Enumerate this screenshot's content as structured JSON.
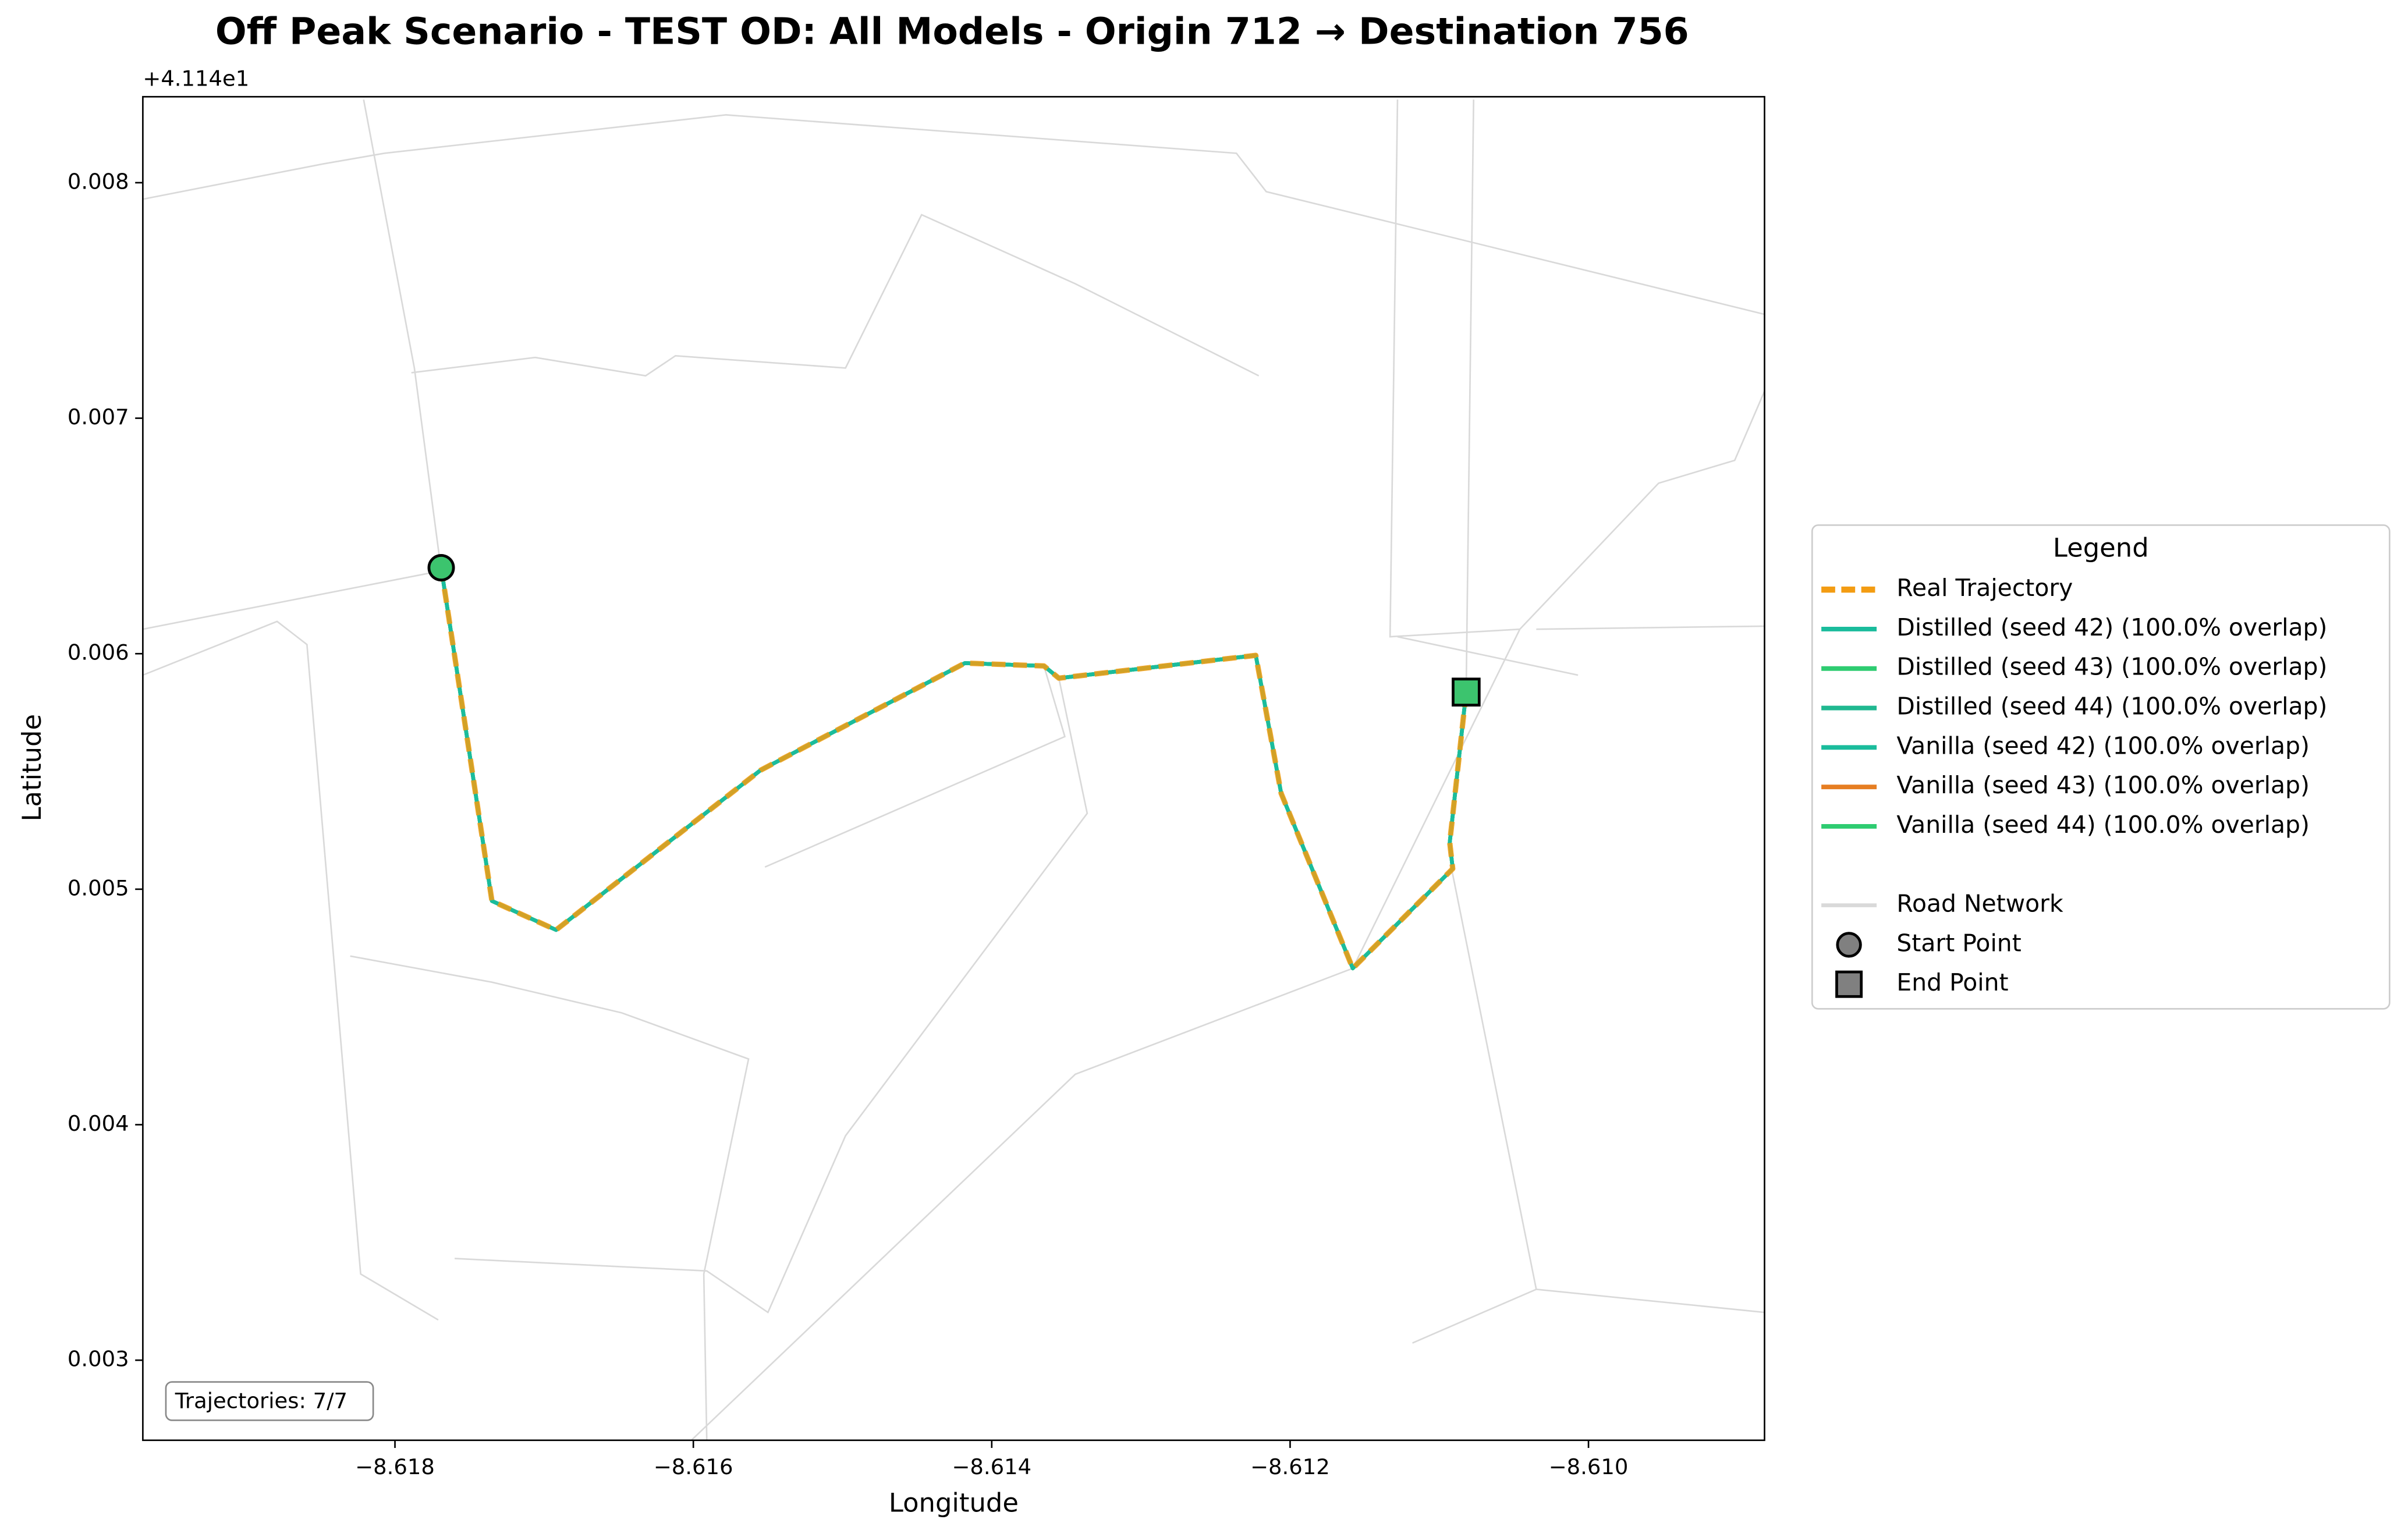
{
  "chart_data": {
    "type": "line",
    "title": "Off Peak Scenario - TEST OD: All Models - Origin 712 → Destination 756",
    "xlabel": "Longitude",
    "ylabel": "Latitude",
    "y_offset_label": "+4.114e1",
    "annotation": "Trajectories: 7/7",
    "legend_title": "Legend",
    "legend_loc": "right",
    "xlim": [
      -8.61969,
      -8.60882
    ],
    "ylim": [
      0.00266,
      0.008365
    ],
    "xticks": [
      {
        "value": -8.618,
        "label": "−8.618"
      },
      {
        "value": -8.616,
        "label": "−8.616"
      },
      {
        "value": -8.614,
        "label": "−8.614"
      },
      {
        "value": -8.612,
        "label": "−8.612"
      },
      {
        "value": -8.61,
        "label": "−8.610"
      }
    ],
    "yticks": [
      0.003,
      0.004,
      0.005,
      0.006,
      0.007,
      0.008
    ],
    "x": [
      -8.61769,
      -8.61735,
      -8.61692,
      -8.61555,
      -8.61418,
      -8.61365,
      -8.61355,
      -8.61223,
      -8.61206,
      -8.61158,
      -8.61091,
      -8.61093,
      -8.61082
    ],
    "series": [
      {
        "name": "Real Trajectory",
        "color": "#f39c12",
        "dashed": true,
        "values": [
          0.006365,
          0.00495,
          0.004827,
          0.005505,
          0.00596,
          0.005948,
          0.005896,
          0.005993,
          0.005407,
          0.004664,
          0.005087,
          0.005198,
          0.005837
        ]
      },
      {
        "name": "Distilled (seed 42) (100.0% overlap)",
        "color": "#1abc9c",
        "values": [
          0.006365,
          0.00495,
          0.004827,
          0.005505,
          0.00596,
          0.005948,
          0.005896,
          0.005993,
          0.005407,
          0.004664,
          0.005087,
          0.005198,
          0.005837
        ]
      },
      {
        "name": "Distilled (seed 43) (100.0% overlap)",
        "color": "#2ecc71",
        "values": [
          0.006365,
          0.00495,
          0.004827,
          0.005505,
          0.00596,
          0.005948,
          0.005896,
          0.005993,
          0.005407,
          0.004664,
          0.005087,
          0.005198,
          0.005837
        ]
      },
      {
        "name": "Distilled (seed 44) (100.0% overlap)",
        "color": "#20b890",
        "values": [
          0.006365,
          0.00495,
          0.004827,
          0.005505,
          0.00596,
          0.005948,
          0.005896,
          0.005993,
          0.005407,
          0.004664,
          0.005087,
          0.005198,
          0.005837
        ]
      },
      {
        "name": "Vanilla (seed 42) (100.0% overlap)",
        "color": "#1abc9c",
        "values": [
          0.006365,
          0.00495,
          0.004827,
          0.005505,
          0.00596,
          0.005948,
          0.005896,
          0.005993,
          0.005407,
          0.004664,
          0.005087,
          0.005198,
          0.005837
        ]
      },
      {
        "name": "Vanilla (seed 43) (100.0% overlap)",
        "color": "#e67e22",
        "values": [
          0.006365,
          0.00495,
          0.004827,
          0.005505,
          0.00596,
          0.005948,
          0.005896,
          0.005993,
          0.005407,
          0.004664,
          0.005087,
          0.005198,
          0.005837
        ]
      },
      {
        "name": "Vanilla (seed 44) (100.0% overlap)",
        "color": "#2ecc71",
        "values": [
          0.006365,
          0.00495,
          0.004827,
          0.005505,
          0.00596,
          0.005948,
          0.005896,
          0.005993,
          0.005407,
          0.004664,
          0.005087,
          0.005198,
          0.005837
        ]
      }
    ],
    "road_network": {
      "name": "Road Network",
      "color": "#d9d9d9",
      "lines": [
        {
          "x": [
            -8.61969,
            -8.61848,
            -8.61807,
            -8.61578,
            -8.61236,
            -8.61216,
            -8.60882
          ],
          "y": [
            0.00793,
            0.00808,
            0.008125,
            0.008288,
            0.008125,
            0.007962,
            0.007441
          ]
        },
        {
          "x": [
            -8.61969,
            -8.61769
          ],
          "y": [
            0.006104,
            0.006352
          ]
        },
        {
          "x": [
            -8.61821,
            -8.61787,
            -8.61769
          ],
          "y": [
            0.008353,
            0.007213,
            0.006352
          ]
        },
        {
          "x": [
            -8.61789,
            -8.61706,
            -8.61632,
            -8.61612,
            -8.61498,
            -8.61447,
            -8.61344,
            -8.61221
          ],
          "y": [
            0.007193,
            0.007258,
            0.00718,
            0.007265,
            0.007213,
            0.007864,
            0.007571,
            0.00718
          ]
        },
        {
          "x": [
            -8.61601,
            -8.61344,
            -8.61158,
            -8.61046,
            -8.60953,
            -8.60902,
            -8.60882
          ],
          "y": [
            0.002662,
            0.004214,
            0.004664,
            0.006104,
            0.006724,
            0.006821,
            0.007115
          ]
        },
        {
          "x": [
            -8.61969,
            -8.61879,
            -8.61859,
            -8.61823,
            -8.61771
          ],
          "y": [
            0.005909,
            0.006137,
            0.006039,
            0.003366,
            0.003171
          ]
        },
        {
          "x": [
            -8.6183,
            -8.61735,
            -8.61648,
            -8.61563,
            -8.61593,
            -8.61591
          ],
          "y": [
            0.004716,
            0.004605,
            0.004475,
            0.004279,
            0.003366,
            0.002662
          ]
        },
        {
          "x": [
            -8.6176,
            -8.61591,
            -8.6155,
            -8.61498,
            -8.61336,
            -8.61355
          ],
          "y": [
            0.003432,
            0.003379,
            0.003203,
            0.003953,
            0.005322,
            0.005896
          ]
        },
        {
          "x": [
            -8.61552,
            -8.61351,
            -8.61365
          ],
          "y": [
            0.005094,
            0.005648,
            0.005948
          ]
        },
        {
          "x": [
            -8.61128,
            -8.61007
          ],
          "y": [
            0.006072,
            0.005909
          ]
        },
        {
          "x": [
            -8.61092,
            -8.61035,
            -8.60882
          ],
          "y": [
            0.005094,
            0.003301,
            0.003203
          ]
        },
        {
          "x": [
            -8.61118,
            -8.61035
          ],
          "y": [
            0.003073,
            0.003301
          ]
        },
        {
          "x": [
            -8.61035,
            -8.60882
          ],
          "y": [
            0.006104,
            0.006117
          ]
        },
        {
          "x": [
            -8.61082,
            -8.61077
          ],
          "y": [
            0.005837,
            0.008353
          ]
        },
        {
          "x": [
            -8.61128,
            -8.61133,
            -8.61046
          ],
          "y": [
            0.008353,
            0.006072,
            0.006104
          ]
        }
      ]
    },
    "start_point": {
      "name": "Start Point",
      "x": -8.61769,
      "y": 0.006365,
      "color": "#3cc46e"
    },
    "end_point": {
      "name": "End Point",
      "x": -8.61082,
      "y": 0.005837,
      "color": "#3cc46e"
    },
    "legend_marker_color": "#808080"
  }
}
